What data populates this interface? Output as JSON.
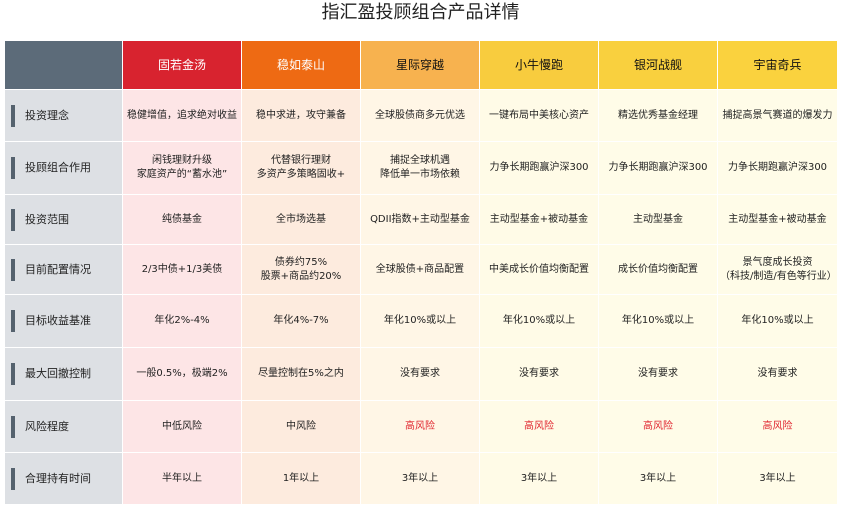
{
  "title": "指汇盈投顾组合产品详情",
  "colors": {
    "high_risk_text": "#e0262f"
  },
  "products": [
    "固若金汤",
    "稳如泰山",
    "星际穿越",
    "小牛慢跑",
    "银河战舰",
    "宇宙奇兵"
  ],
  "rows": [
    {
      "label": "投资理念",
      "values": [
        "稳健增值，追求绝对收益",
        "稳中求进，攻守兼备",
        "全球股债商多元优选",
        "一键布局中美核心资产",
        "精选优秀基金经理",
        "捕捉高景气赛道的爆发力"
      ]
    },
    {
      "label": "投顾组合作用",
      "values": [
        "闲钱理财升级\n家庭资产的“蓄水池”",
        "代替银行理财\n多资产多策略固收+",
        "捕捉全球机遇\n降低单一市场依赖",
        "力争长期跑赢沪深300",
        "力争长期跑赢沪深300",
        "力争长期跑赢沪深300"
      ]
    },
    {
      "label": "投资范围",
      "values": [
        "纯债基金",
        "全市场选基",
        "QDII指数+主动型基金",
        "主动型基金+被动基金",
        "主动型基金",
        "主动型基金+被动基金"
      ]
    },
    {
      "label": "目前配置情况",
      "values": [
        "2/3中债+1/3美债",
        "债券约75%\n股票+商品约20%",
        "全球股债+商品配置",
        "中美成长价值均衡配置",
        "成长价值均衡配置",
        "景气度成长投资\n（科技/制造/有色等行业）"
      ]
    },
    {
      "label": "目标收益基准",
      "values": [
        "年化2%-4%",
        "年化4%-7%",
        "年化10%或以上",
        "年化10%或以上",
        "年化10%或以上",
        "年化10%或以上"
      ]
    },
    {
      "label": "最大回撤控制",
      "values": [
        "一般0.5%，极端2%",
        "尽量控制在5%之内",
        "没有要求",
        "没有要求",
        "没有要求",
        "没有要求"
      ]
    },
    {
      "label": "风险程度",
      "values": [
        "中低风险",
        "中风险",
        "高风险",
        "高风险",
        "高风险",
        "高风险"
      ]
    },
    {
      "label": "合理持有时间",
      "values": [
        "半年以上",
        "1年以上",
        "3年以上",
        "3年以上",
        "3年以上",
        "3年以上"
      ]
    }
  ]
}
